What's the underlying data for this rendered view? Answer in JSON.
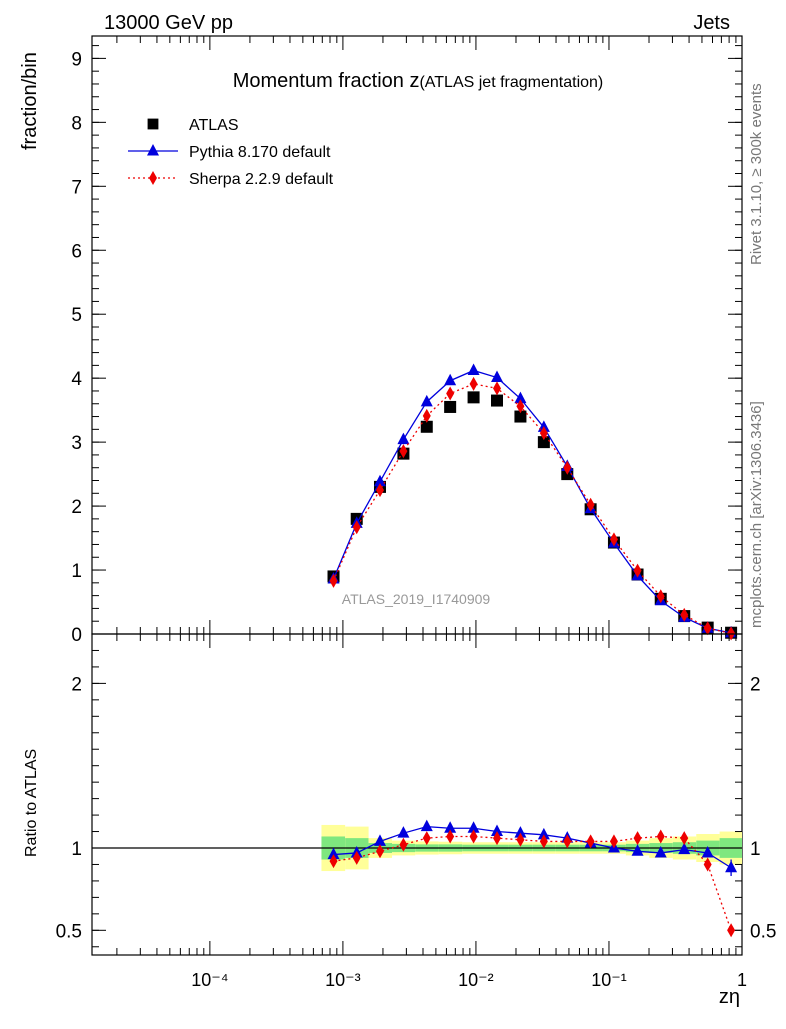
{
  "header": {
    "energy_label": "13000 GeV pp",
    "category_label": "Jets",
    "title_main": "Momentum fraction z",
    "title_paren": "(ATLAS jet fragmentation)"
  },
  "side": {
    "rivet_label": "Rivet 3.1.10, ≥ 300k events",
    "mcplots_label": "mcplots.cern.ch [arXiv:1306.3436]"
  },
  "watermark": "ATLAS_2019_I1740909",
  "colors": {
    "atlas": "#000000",
    "pythia": "#0000dd",
    "sherpa": "#ee0000",
    "band_inner": "#7fe77f",
    "band_outer": "#ffff99"
  },
  "chart_data": [
    {
      "type": "scatter",
      "panel": "main",
      "ylabel": "fraction/bin",
      "xscale": "log",
      "xlim": [
        1.3e-05,
        1
      ],
      "ylim": [
        0,
        9.35
      ],
      "yticks": [
        0,
        1,
        2,
        3,
        4,
        5,
        6,
        7,
        8,
        9
      ],
      "legend_position": "top-left",
      "x": [
        0.00085,
        0.00127,
        0.0019,
        0.00285,
        0.00427,
        0.0064,
        0.0096,
        0.0144,
        0.0216,
        0.0324,
        0.0486,
        0.0728,
        0.109,
        0.164,
        0.245,
        0.368,
        0.552,
        0.828
      ],
      "series": [
        {
          "name": "ATLAS",
          "marker": "square",
          "line": "none",
          "values": [
            0.9,
            1.8,
            2.3,
            2.82,
            3.24,
            3.55,
            3.7,
            3.65,
            3.4,
            3.0,
            2.5,
            1.95,
            1.43,
            0.93,
            0.55,
            0.28,
            0.1,
            0.02
          ]
        },
        {
          "name": "Pythia 8.170 default",
          "marker": "triangle",
          "line": "solid",
          "values": [
            0.86,
            1.73,
            2.38,
            3.04,
            3.63,
            3.96,
            4.12,
            4.01,
            3.68,
            3.23,
            2.62,
            1.96,
            1.42,
            0.91,
            0.52,
            0.26,
            0.09,
            0.018
          ]
        },
        {
          "name": "Sherpa 2.2.9 default",
          "marker": "diamond",
          "line": "dotted",
          "values": [
            0.83,
            1.67,
            2.25,
            2.86,
            3.41,
            3.76,
            3.91,
            3.84,
            3.56,
            3.14,
            2.6,
            2.02,
            1.48,
            0.99,
            0.59,
            0.3,
            0.09,
            0.01
          ]
        }
      ]
    },
    {
      "type": "scatter",
      "panel": "ratio",
      "ylabel": "Ratio to ATLAS",
      "xlabel": "zη",
      "xscale": "log",
      "xlim": [
        1.3e-05,
        1
      ],
      "ylim": [
        0.35,
        2.3
      ],
      "yticks": [
        0.5,
        1,
        2
      ],
      "ytick_labels": [
        "0.5",
        "1",
        "2"
      ],
      "xticks": [
        0.0001,
        0.001,
        0.01,
        0.1,
        1
      ],
      "xtick_labels": [
        "10⁻⁴",
        "10⁻³",
        "10⁻²",
        "10⁻¹",
        "1"
      ],
      "x": [
        0.00085,
        0.00127,
        0.0019,
        0.00285,
        0.00427,
        0.0064,
        0.0096,
        0.0144,
        0.0216,
        0.0324,
        0.0486,
        0.0728,
        0.109,
        0.164,
        0.245,
        0.368,
        0.552,
        0.828
      ],
      "bin_edges": [
        0.00069,
        0.00104,
        0.00156,
        0.00234,
        0.0035,
        0.00525,
        0.0079,
        0.0118,
        0.0177,
        0.0265,
        0.0398,
        0.0597,
        0.0895,
        0.134,
        0.201,
        0.302,
        0.453,
        0.679,
        1.0
      ],
      "band_inner": [
        0.07,
        0.06,
        0.03,
        0.025,
        0.022,
        0.022,
        0.02,
        0.02,
        0.02,
        0.02,
        0.02,
        0.02,
        0.02,
        0.025,
        0.03,
        0.035,
        0.045,
        0.06
      ],
      "band_outer": [
        0.14,
        0.13,
        0.06,
        0.045,
        0.04,
        0.038,
        0.035,
        0.035,
        0.035,
        0.035,
        0.035,
        0.035,
        0.035,
        0.045,
        0.06,
        0.07,
        0.085,
        0.1
      ],
      "series": [
        {
          "name": "Pythia 8.170 default",
          "values": [
            0.96,
            0.97,
            1.04,
            1.09,
            1.13,
            1.12,
            1.12,
            1.1,
            1.09,
            1.08,
            1.06,
            1.03,
            1.0,
            0.98,
            0.97,
            0.99,
            0.97,
            0.88
          ]
        },
        {
          "name": "Sherpa 2.2.9 default",
          "values": [
            0.92,
            0.94,
            0.98,
            1.02,
            1.06,
            1.07,
            1.07,
            1.06,
            1.05,
            1.04,
            1.04,
            1.04,
            1.04,
            1.06,
            1.07,
            1.06,
            0.9,
            0.5
          ]
        }
      ]
    }
  ]
}
